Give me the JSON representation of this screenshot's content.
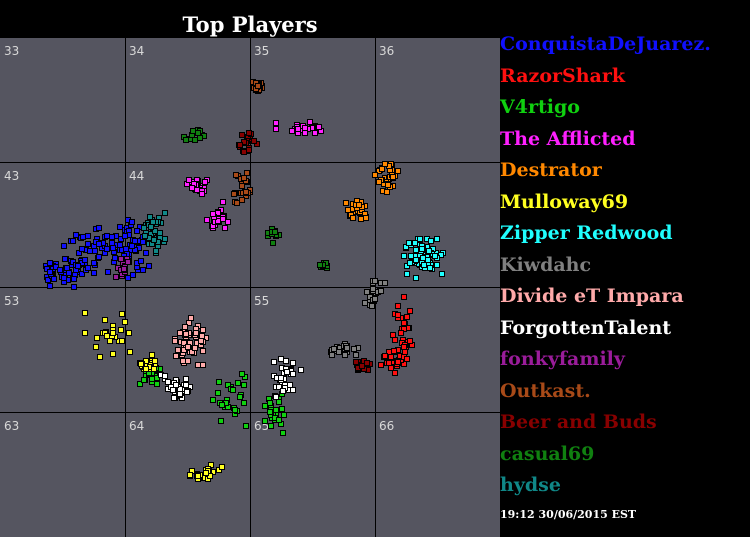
{
  "title": "Top Players",
  "timestamp": "19:12 30/06/2015 EST",
  "grid": {
    "cells": [
      "33",
      "34",
      "35",
      "36",
      "43",
      "44",
      "53",
      "55",
      "63",
      "64",
      "65",
      "66"
    ]
  },
  "players": [
    {
      "name": "ConquistaDeJuarez.",
      "color": "#1010ff"
    },
    {
      "name": "RazorShark",
      "color": "#ff1010"
    },
    {
      "name": "V4rtigo",
      "color": "#10d010"
    },
    {
      "name": "The Afflicted",
      "color": "#ff20ff"
    },
    {
      "name": "Destrator",
      "color": "#ff8800"
    },
    {
      "name": "Mulloway69",
      "color": "#ffff20"
    },
    {
      "name": "Zipper Redwood",
      "color": "#20ffff"
    },
    {
      "name": "Kiwdahc",
      "color": "#808080"
    },
    {
      "name": "Divide eT Impara",
      "color": "#ffaaaa"
    },
    {
      "name": "ForgottenTalent",
      "color": "#ffffff"
    },
    {
      "name": "fonkyfamily",
      "color": "#9a1c9a"
    },
    {
      "name": "Outkast.",
      "color": "#a84a18"
    },
    {
      "name": "Beer and Buds",
      "color": "#880000"
    },
    {
      "name": "casual69",
      "color": "#108010"
    },
    {
      "name": "hydse",
      "color": "#108888"
    }
  ]
}
